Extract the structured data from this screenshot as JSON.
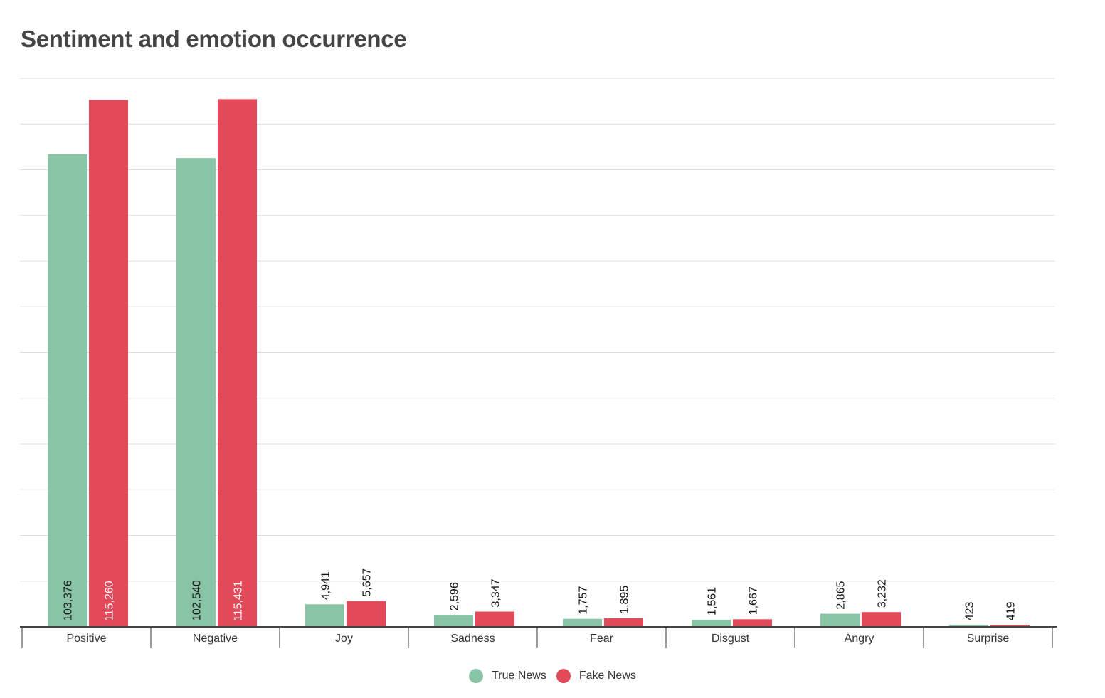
{
  "chart_data": {
    "type": "bar",
    "title": "Sentiment and emotion occurrence",
    "categories": [
      "Positive",
      "Negative",
      "Joy",
      "Sadness",
      "Fear",
      "Disgust",
      "Angry",
      "Surprise"
    ],
    "series": [
      {
        "name": "True News",
        "color": "#8ac4a7",
        "values": [
          103376,
          102540,
          4941,
          2596,
          1757,
          1561,
          2865,
          423
        ],
        "labels": [
          "103,376",
          "102,540",
          "4,941",
          "2,596",
          "1,757",
          "1,561",
          "2,865",
          "423"
        ]
      },
      {
        "name": "Fake News",
        "color": "#e24a5a",
        "values": [
          115260,
          115431,
          5657,
          3347,
          1895,
          1667,
          3232,
          419
        ],
        "labels": [
          "115,260",
          "115,431",
          "5,657",
          "3,347",
          "1,895",
          "1,667",
          "3,232",
          "419"
        ]
      }
    ],
    "ylim": [
      0,
      120000
    ],
    "gridlines": 12,
    "grid": true,
    "y_tick_labels": false,
    "legend_position": "bottom-center"
  }
}
